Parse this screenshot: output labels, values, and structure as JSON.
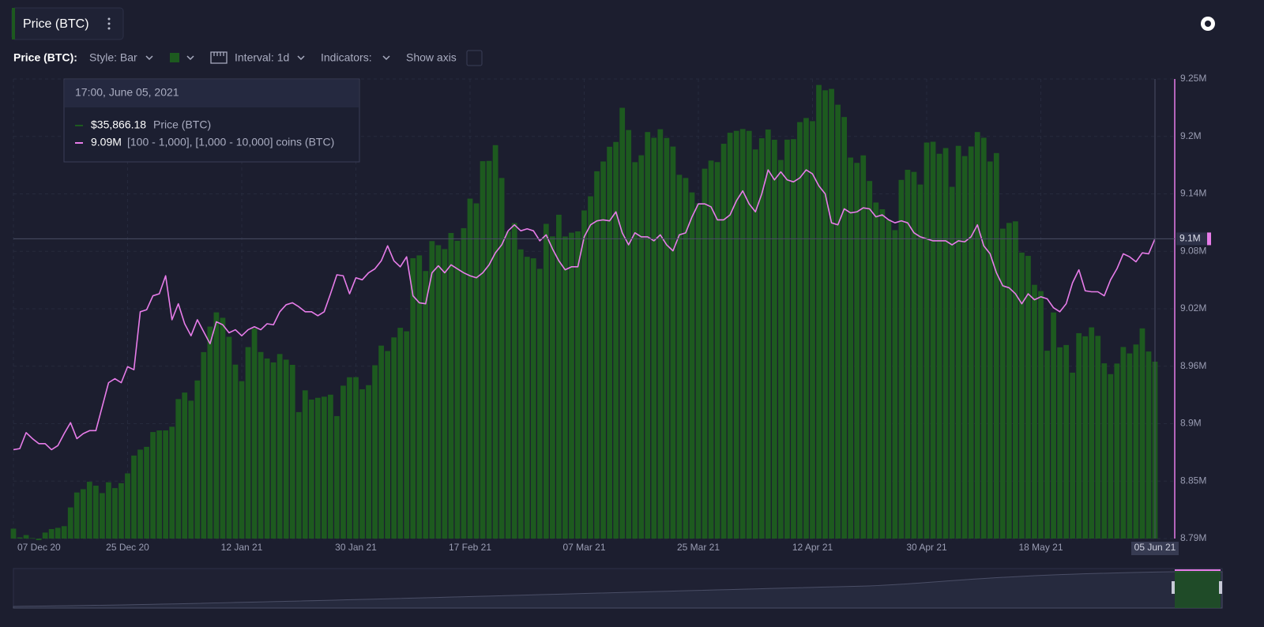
{
  "toolbar": {
    "tab": "Price (BTC)",
    "metric": "Price (BTC):",
    "style": "Style: Bar",
    "interval": "Interval: 1d",
    "indicators": "Indicators:",
    "show_axis": "Show axis"
  },
  "chart_data": {
    "type": "bar",
    "categories": [
      "07 Dec 20",
      null,
      null,
      null,
      null,
      null,
      null,
      null,
      null,
      null,
      null,
      null,
      null,
      null,
      null,
      null,
      null,
      null,
      "25 Dec 20",
      null,
      null,
      null,
      null,
      null,
      null,
      null,
      null,
      null,
      null,
      null,
      null,
      null,
      null,
      null,
      null,
      null,
      "12 Jan 21",
      null,
      null,
      null,
      null,
      null,
      null,
      null,
      null,
      null,
      null,
      null,
      null,
      null,
      null,
      null,
      null,
      null,
      "30 Jan 21",
      null,
      null,
      null,
      null,
      null,
      null,
      null,
      null,
      null,
      null,
      null,
      null,
      null,
      null,
      null,
      null,
      null,
      "17 Feb 21",
      null,
      null,
      null,
      null,
      null,
      null,
      null,
      null,
      null,
      null,
      null,
      null,
      null,
      null,
      null,
      null,
      null,
      "07 Mar 21",
      null,
      null,
      null,
      null,
      null,
      null,
      null,
      null,
      null,
      null,
      null,
      null,
      null,
      null,
      null,
      null,
      null,
      "25 Mar 21",
      null,
      null,
      null,
      null,
      null,
      null,
      null,
      null,
      null,
      null,
      null,
      null,
      null,
      null,
      null,
      null,
      null,
      "12 Apr 21",
      null,
      null,
      null,
      null,
      null,
      null,
      null,
      null,
      null,
      null,
      null,
      null,
      null,
      null,
      null,
      null,
      null,
      "30 Apr 21",
      null,
      null,
      null,
      null,
      null,
      null,
      null,
      null,
      null,
      null,
      null,
      null,
      null,
      null,
      null,
      null,
      null,
      "18 May 21",
      null,
      null,
      null,
      null,
      null,
      null,
      null,
      null,
      null,
      null,
      null,
      null,
      null,
      null,
      null,
      null,
      null,
      "05 Jun 21"
    ],
    "series": [
      {
        "name": "Price (BTC)",
        "type": "bar",
        "axis": "y2",
        "color": "#1d5a1f",
        "values": [
          19190,
          18320,
          18550,
          18250,
          18040,
          18800,
          19150,
          19270,
          19440,
          21310,
          22800,
          23130,
          23870,
          23480,
          22740,
          23820,
          23240,
          23730,
          24710,
          26490,
          27080,
          27360,
          28840,
          29000,
          29000,
          29370,
          32130,
          32780,
          31970,
          33990,
          36820,
          39370,
          40790,
          40250,
          38350,
          35570,
          33920,
          37320,
          39190,
          36830,
          36180,
          35790,
          36630,
          36070,
          35550,
          30830,
          33000,
          32080,
          32260,
          32370,
          32570,
          30430,
          33470,
          34310,
          34320,
          33110,
          33520,
          35510,
          37470,
          36930,
          38290,
          39250,
          38900,
          46200,
          46480,
          44920,
          47910,
          47500,
          47110,
          48720,
          47940,
          49200,
          52150,
          51680,
          55890,
          55920,
          57490,
          54210,
          48880,
          49710,
          47080,
          46340,
          46190,
          45140,
          49630,
          48380,
          50540,
          48370,
          48750,
          48880,
          50970,
          52380,
          54880,
          55860,
          57330,
          57810,
          61220,
          59000,
          55790,
          56480,
          58800,
          58230,
          59080,
          58210,
          57350,
          54530,
          54210,
          52770,
          51700,
          55140,
          55950,
          55800,
          57630,
          58730,
          58920,
          59100,
          58920,
          57060,
          58180,
          59050,
          58030,
          56010,
          58040,
          58090,
          59790,
          60200,
          59890,
          63500,
          62970,
          63110,
          61530,
          60300,
          56250,
          55720,
          56470,
          53910,
          51760,
          51090,
          50050,
          49000,
          54020,
          55030,
          54820,
          53560,
          57750,
          57830,
          56630,
          57200,
          53330,
          57420,
          56400,
          57360,
          58800,
          58230,
          55860,
          56700,
          49150,
          49720,
          49880,
          46760,
          46430,
          43540,
          42910,
          36960,
          40780,
          37300,
          37530,
          34770,
          38710,
          38400,
          39290,
          38440,
          35700,
          34620,
          35680,
          37330,
          36690,
          37580,
          39190,
          36880,
          35866.18
        ]
      },
      {
        "name": "[100 - 1,000], [1,000 - 10,000] coins (BTC)",
        "type": "line",
        "color": "#e77ce9",
        "values": [
          8.879,
          8.88,
          8.896,
          8.89,
          8.885,
          8.885,
          8.879,
          8.883,
          8.895,
          8.906,
          8.89,
          8.895,
          8.898,
          8.898,
          8.922,
          8.946,
          8.95,
          8.946,
          8.962,
          8.959,
          9.017,
          9.019,
          9.033,
          9.035,
          9.053,
          9.009,
          9.025,
          9.005,
          8.993,
          9.009,
          8.997,
          8.985,
          9.007,
          9.004,
          8.996,
          8.999,
          8.993,
          8.999,
          9.002,
          8.999,
          9.005,
          9.004,
          9.017,
          9.024,
          9.026,
          9.022,
          9.017,
          9.017,
          9.013,
          9.017,
          9.035,
          9.054,
          9.053,
          9.035,
          9.051,
          9.049,
          9.056,
          9.06,
          9.068,
          9.083,
          9.068,
          9.062,
          9.072,
          9.033,
          9.026,
          9.025,
          9.056,
          9.063,
          9.056,
          9.064,
          9.06,
          9.056,
          9.053,
          9.051,
          9.056,
          9.064,
          9.076,
          9.084,
          9.098,
          9.104,
          9.098,
          9.1,
          9.098,
          9.088,
          9.094,
          9.08,
          9.068,
          9.059,
          9.062,
          9.062,
          9.092,
          9.104,
          9.108,
          9.109,
          9.108,
          9.117,
          9.096,
          9.084,
          9.096,
          9.092,
          9.092,
          9.088,
          9.094,
          9.084,
          9.078,
          9.094,
          9.096,
          9.112,
          9.125,
          9.125,
          9.122,
          9.109,
          9.109,
          9.114,
          9.128,
          9.138,
          9.125,
          9.117,
          9.135,
          9.159,
          9.149,
          9.157,
          9.149,
          9.147,
          9.151,
          9.159,
          9.155,
          9.143,
          9.135,
          9.106,
          9.104,
          9.12,
          9.116,
          9.117,
          9.121,
          9.12,
          9.112,
          9.114,
          9.109,
          9.106,
          9.108,
          9.106,
          9.096,
          9.092,
          9.09,
          9.088,
          9.088,
          9.088,
          9.084,
          9.088,
          9.087,
          9.092,
          9.104,
          9.083,
          9.075,
          9.056,
          9.043,
          9.041,
          9.035,
          9.025,
          9.035,
          9.029,
          9.032,
          9.03,
          9.021,
          9.017,
          9.025,
          9.046,
          9.059,
          9.038,
          9.037,
          9.037,
          9.033,
          9.049,
          9.06,
          9.075,
          9.072,
          9.067,
          9.076,
          9.075,
          9.09
        ]
      }
    ],
    "ylim": [
      8.79,
      9.25
    ],
    "yticks": [
      {
        "value": 8.79,
        "label": "8.79M"
      },
      {
        "value": 8.8475,
        "label": "8.85M"
      },
      {
        "value": 8.905,
        "label": "8.9M"
      },
      {
        "value": 8.9625,
        "label": "8.96M"
      },
      {
        "value": 9.02,
        "label": "9.02M"
      },
      {
        "value": 9.0775,
        "label": "9.08M"
      },
      {
        "value": 9.135,
        "label": "9.14M"
      },
      {
        "value": 9.1925,
        "label": "9.2M"
      },
      {
        "value": 9.25,
        "label": "9.25M"
      }
    ],
    "y2lim": [
      18200,
      64100
    ],
    "grid": true,
    "crosshair": {
      "value": 9.09,
      "label": "9.1M"
    },
    "tooltip": {
      "title": "17:00, June 05, 2021",
      "price": "$35,866.18",
      "line": "9.09M"
    }
  }
}
